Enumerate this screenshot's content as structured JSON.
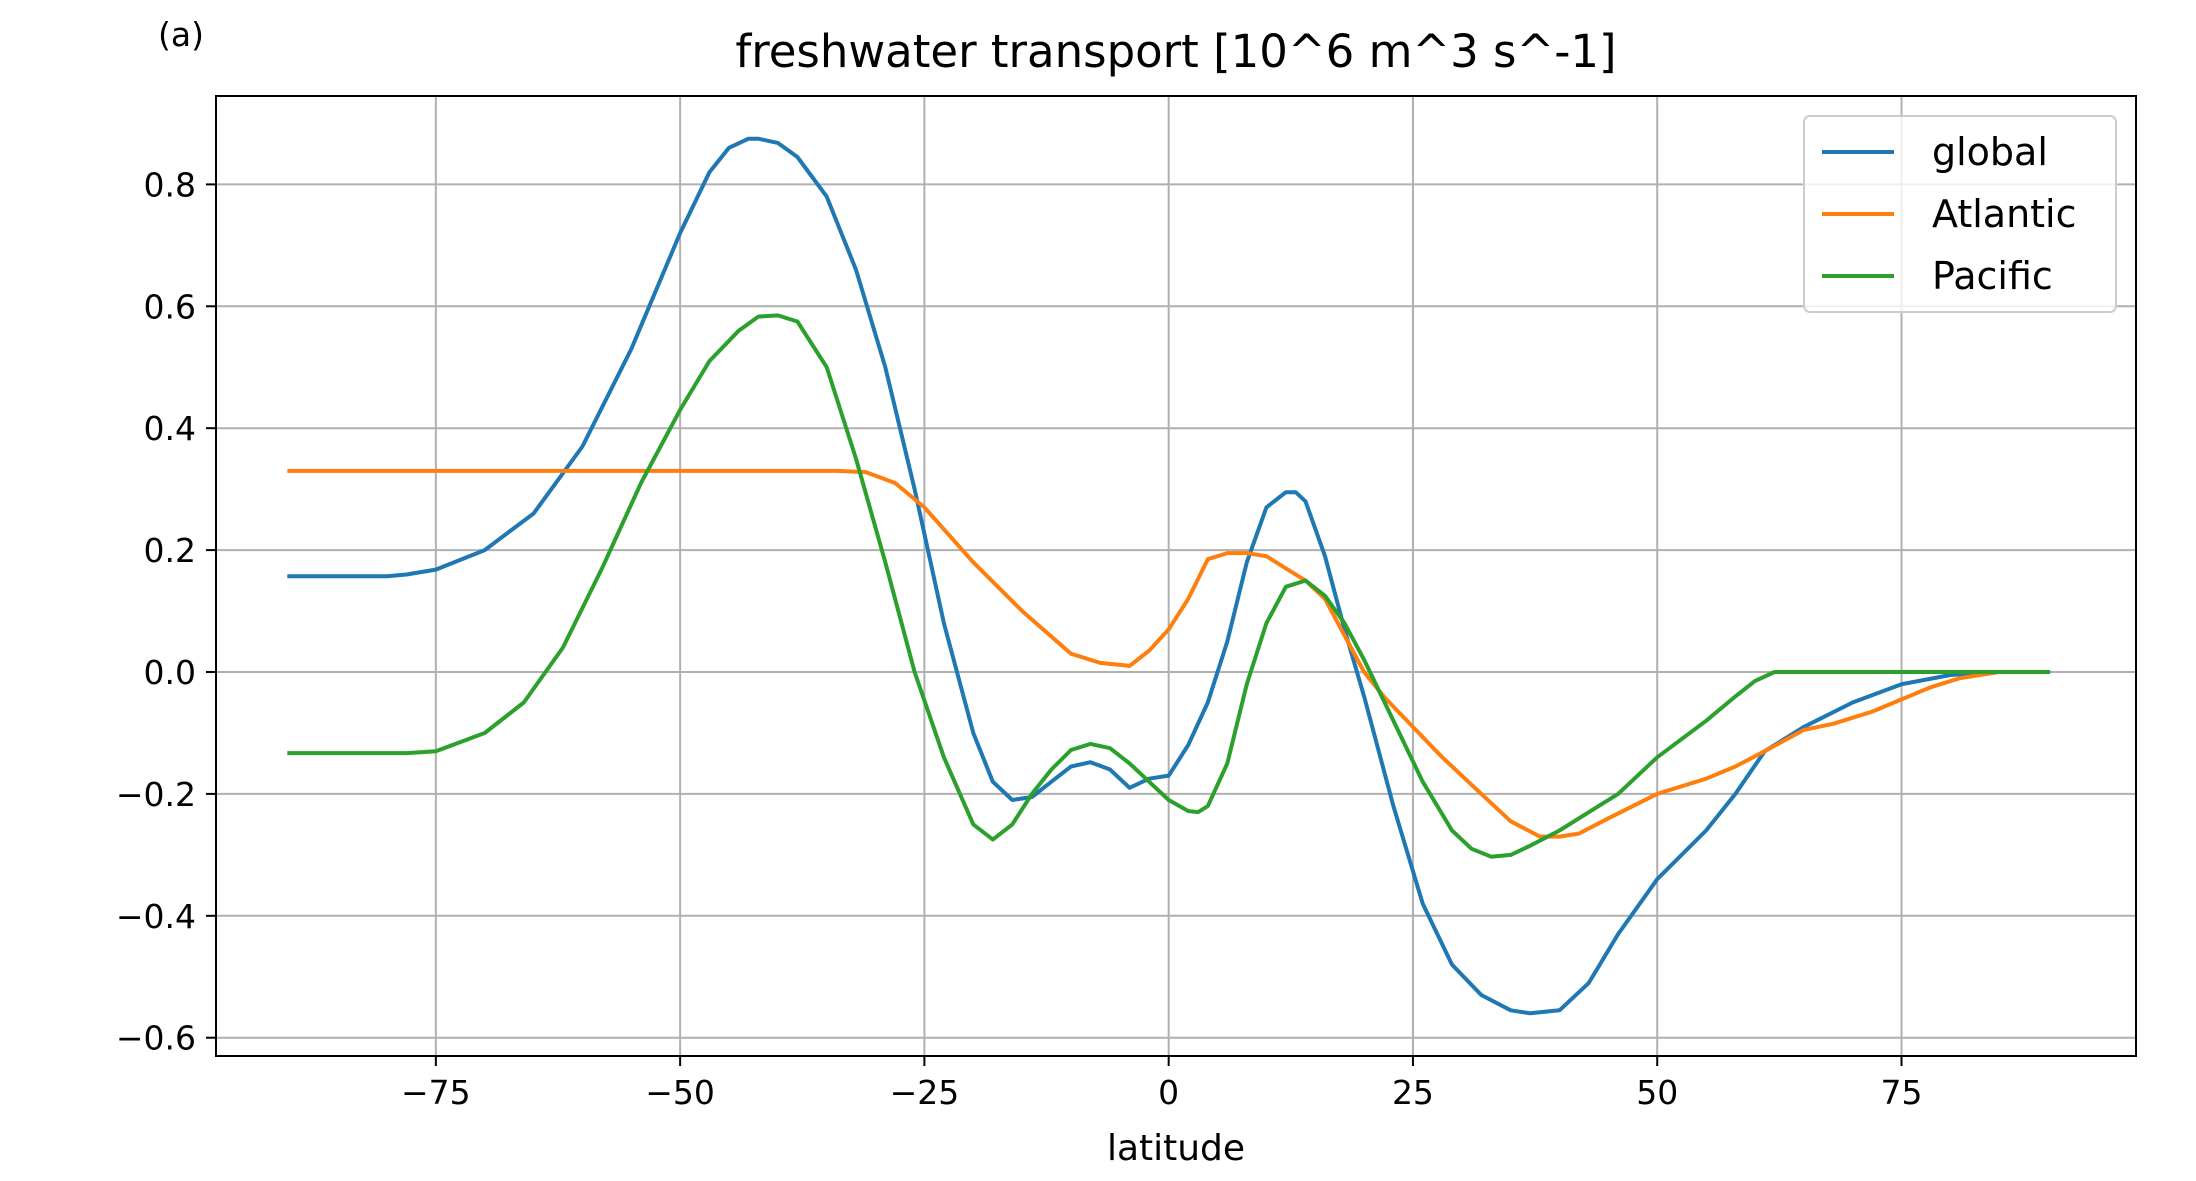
{
  "panel_label": "(a)",
  "chart_data": {
    "type": "line",
    "title": "freshwater transport [10^6 m^3 s^-1]",
    "xlabel": "latitude",
    "ylabel": "",
    "xlim": [
      -97.5,
      99
    ],
    "ylim": [
      -0.63,
      0.945
    ],
    "xticks": [
      -75,
      -50,
      -25,
      0,
      25,
      50,
      75
    ],
    "xtick_labels": [
      "−75",
      "−50",
      "−25",
      "0",
      "25",
      "50",
      "75"
    ],
    "yticks": [
      -0.6,
      -0.4,
      -0.2,
      0.0,
      0.2,
      0.4,
      0.6,
      0.8
    ],
    "ytick_labels": [
      "−0.6",
      "−0.4",
      "−0.2",
      "0.0",
      "0.2",
      "0.4",
      "0.6",
      "0.8"
    ],
    "grid": true,
    "legend_position": "top-right",
    "series": [
      {
        "name": "global",
        "color": "#1f77b4",
        "x": [
          -90,
          -85,
          -80,
          -78,
          -75,
          -70,
          -65,
          -60,
          -55,
          -50,
          -47,
          -45,
          -43,
          -42,
          -40,
          -38,
          -35,
          -32,
          -29,
          -26,
          -23,
          -20,
          -18,
          -16,
          -14,
          -12,
          -10,
          -8,
          -6,
          -4,
          -2,
          0,
          2,
          4,
          6,
          8,
          10,
          12,
          13,
          14,
          16,
          18,
          20,
          23,
          26,
          29,
          32,
          35,
          37,
          40,
          43,
          46,
          50,
          55,
          58,
          61,
          65,
          70,
          75,
          80,
          85,
          90
        ],
        "y": [
          0.157,
          0.157,
          0.157,
          0.16,
          0.168,
          0.2,
          0.26,
          0.37,
          0.53,
          0.72,
          0.82,
          0.86,
          0.875,
          0.875,
          0.868,
          0.845,
          0.78,
          0.66,
          0.5,
          0.3,
          0.08,
          -0.1,
          -0.18,
          -0.21,
          -0.205,
          -0.18,
          -0.155,
          -0.148,
          -0.16,
          -0.19,
          -0.175,
          -0.17,
          -0.12,
          -0.05,
          0.05,
          0.18,
          0.27,
          0.295,
          0.295,
          0.28,
          0.19,
          0.07,
          -0.04,
          -0.22,
          -0.38,
          -0.48,
          -0.53,
          -0.555,
          -0.56,
          -0.555,
          -0.51,
          -0.43,
          -0.34,
          -0.26,
          -0.2,
          -0.13,
          -0.09,
          -0.05,
          -0.02,
          -0.005,
          0.0,
          0.0
        ]
      },
      {
        "name": "Atlantic",
        "color": "#ff7f0e",
        "x": [
          -90,
          -80,
          -70,
          -60,
          -50,
          -40,
          -34,
          -31,
          -28,
          -25,
          -20,
          -15,
          -10,
          -7,
          -4,
          -2,
          0,
          2,
          4,
          6,
          8,
          10,
          12,
          14,
          16,
          18,
          20,
          22,
          25,
          28,
          32,
          35,
          38,
          40,
          42,
          45,
          50,
          55,
          58,
          61,
          65,
          68,
          72,
          75,
          78,
          81,
          85,
          90
        ],
        "y": [
          0.33,
          0.33,
          0.33,
          0.33,
          0.33,
          0.33,
          0.33,
          0.328,
          0.31,
          0.27,
          0.18,
          0.1,
          0.03,
          0.015,
          0.01,
          0.035,
          0.07,
          0.12,
          0.185,
          0.195,
          0.195,
          0.19,
          0.17,
          0.15,
          0.12,
          0.06,
          0.0,
          -0.04,
          -0.09,
          -0.14,
          -0.2,
          -0.245,
          -0.27,
          -0.27,
          -0.265,
          -0.24,
          -0.2,
          -0.175,
          -0.155,
          -0.13,
          -0.095,
          -0.085,
          -0.065,
          -0.045,
          -0.025,
          -0.01,
          0.0,
          0.0
        ]
      },
      {
        "name": "Pacific",
        "color": "#2ca02c",
        "x": [
          -90,
          -85,
          -80,
          -78,
          -75,
          -70,
          -66,
          -62,
          -58,
          -54,
          -50,
          -47,
          -44,
          -42,
          -40,
          -38,
          -35,
          -32,
          -29,
          -26,
          -23,
          -20,
          -18,
          -16,
          -14,
          -12,
          -10,
          -8,
          -6,
          -4,
          -2,
          0,
          2,
          3,
          4,
          6,
          8,
          10,
          12,
          14,
          16,
          18,
          20,
          23,
          26,
          29,
          31,
          33,
          35,
          37,
          40,
          43,
          46,
          50,
          55,
          58,
          60,
          62,
          65,
          70,
          75,
          80,
          85,
          90
        ],
        "y": [
          -0.133,
          -0.133,
          -0.133,
          -0.133,
          -0.13,
          -0.1,
          -0.05,
          0.04,
          0.17,
          0.31,
          0.43,
          0.51,
          0.56,
          0.583,
          0.585,
          0.575,
          0.5,
          0.35,
          0.18,
          0.0,
          -0.14,
          -0.25,
          -0.275,
          -0.25,
          -0.2,
          -0.16,
          -0.128,
          -0.118,
          -0.125,
          -0.15,
          -0.18,
          -0.21,
          -0.228,
          -0.23,
          -0.22,
          -0.15,
          -0.02,
          0.08,
          0.14,
          0.15,
          0.125,
          0.08,
          0.02,
          -0.08,
          -0.18,
          -0.26,
          -0.29,
          -0.303,
          -0.3,
          -0.285,
          -0.26,
          -0.23,
          -0.2,
          -0.14,
          -0.08,
          -0.04,
          -0.015,
          0.0,
          0.0,
          0.0,
          0.0,
          0.0,
          0.0,
          0.0
        ]
      }
    ]
  }
}
